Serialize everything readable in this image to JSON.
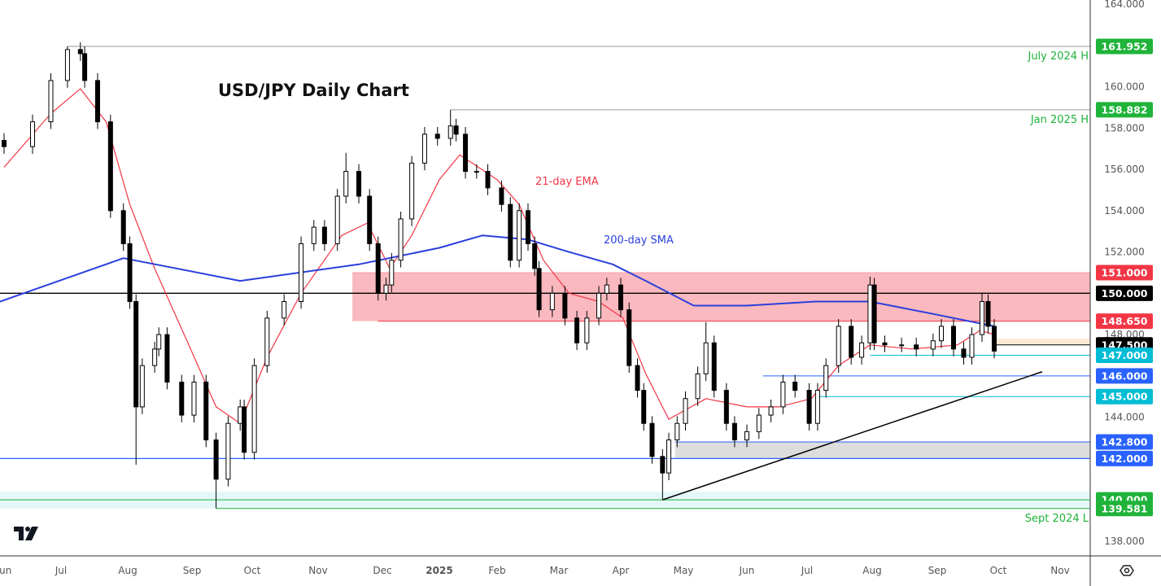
{
  "chart_data": {
    "type": "candlestick",
    "title": "USD/JPY Daily Chart",
    "y_ticks": [
      164,
      160,
      158,
      156,
      154,
      152,
      148,
      144,
      138
    ],
    "ylim": [
      138,
      164
    ],
    "x_ticks": [
      "Jun",
      "Jul",
      "Aug",
      "Sep",
      "Oct",
      "Nov",
      "Dec",
      "2025",
      "Feb",
      "Mar",
      "Apr",
      "May",
      "Jun",
      "Jul",
      "Aug",
      "Sep",
      "Oct",
      "Nov"
    ],
    "candles": [
      {
        "date": "2024-06-03",
        "close": 157.1
      },
      {
        "date": "2024-06-17",
        "close": 158.3
      },
      {
        "date": "2024-06-26",
        "close": 160.3
      },
      {
        "date": "2024-07-04",
        "close": 161.8,
        "high": 161.952
      },
      {
        "date": "2024-07-10",
        "close": 161.6
      },
      {
        "date": "2024-07-12",
        "close": 160.3
      },
      {
        "date": "2024-07-18",
        "close": 158.3
      },
      {
        "date": "2024-07-24",
        "close": 154.0
      },
      {
        "date": "2024-07-30",
        "close": 152.4
      },
      {
        "date": "2024-08-02",
        "close": 149.6
      },
      {
        "date": "2024-08-05",
        "close": 144.5,
        "low": 141.7
      },
      {
        "date": "2024-08-08",
        "close": 146.5
      },
      {
        "date": "2024-08-14",
        "close": 147.3
      },
      {
        "date": "2024-08-16",
        "close": 148.0
      },
      {
        "date": "2024-08-20",
        "close": 145.7
      },
      {
        "date": "2024-08-27",
        "close": 144.1
      },
      {
        "date": "2024-09-02",
        "close": 145.7
      },
      {
        "date": "2024-09-08",
        "close": 142.9
      },
      {
        "date": "2024-09-13",
        "close": 141.0,
        "low": 139.581
      },
      {
        "date": "2024-09-19",
        "close": 143.7
      },
      {
        "date": "2024-09-25",
        "close": 144.5
      },
      {
        "date": "2024-09-27",
        "close": 142.3
      },
      {
        "date": "2024-10-02",
        "close": 146.5
      },
      {
        "date": "2024-10-08",
        "close": 148.8
      },
      {
        "date": "2024-10-16",
        "close": 149.6
      },
      {
        "date": "2024-10-24",
        "close": 152.4
      },
      {
        "date": "2024-10-30",
        "close": 153.2
      },
      {
        "date": "2024-11-04",
        "close": 152.4
      },
      {
        "date": "2024-11-10",
        "close": 154.7
      },
      {
        "date": "2024-11-14",
        "close": 155.9,
        "high": 156.8
      },
      {
        "date": "2024-11-20",
        "close": 154.7
      },
      {
        "date": "2024-11-25",
        "close": 152.4
      },
      {
        "date": "2024-11-29",
        "close": 150.0
      },
      {
        "date": "2024-12-03",
        "close": 150.4
      },
      {
        "date": "2024-12-06",
        "close": 151.6
      },
      {
        "date": "2024-12-11",
        "close": 153.6
      },
      {
        "date": "2024-12-17",
        "close": 156.3
      },
      {
        "date": "2024-12-24",
        "close": 157.7
      },
      {
        "date": "2024-12-31",
        "close": 157.5
      },
      {
        "date": "2025-01-07",
        "close": 158.1,
        "high": 158.882
      },
      {
        "date": "2025-01-10",
        "close": 157.7
      },
      {
        "date": "2025-01-15",
        "close": 155.9
      },
      {
        "date": "2025-01-21",
        "close": 155.9
      },
      {
        "date": "2025-01-27",
        "close": 155.1
      },
      {
        "date": "2025-02-03",
        "close": 154.3
      },
      {
        "date": "2025-02-07",
        "close": 151.6
      },
      {
        "date": "2025-02-11",
        "close": 154.0
      },
      {
        "date": "2025-02-15",
        "close": 152.4
      },
      {
        "date": "2025-02-18",
        "close": 151.2
      },
      {
        "date": "2025-02-20",
        "close": 149.2
      },
      {
        "date": "2025-02-26",
        "close": 150.0
      },
      {
        "date": "2025-03-04",
        "close": 148.8
      },
      {
        "date": "2025-03-10",
        "close": 147.6
      },
      {
        "date": "2025-03-15",
        "close": 148.8
      },
      {
        "date": "2025-03-21",
        "close": 150.0
      },
      {
        "date": "2025-03-25",
        "close": 150.4
      },
      {
        "date": "2025-04-01",
        "close": 149.2
      },
      {
        "date": "2025-04-05",
        "close": 146.5
      },
      {
        "date": "2025-04-09",
        "close": 145.3
      },
      {
        "date": "2025-04-12",
        "close": 143.7
      },
      {
        "date": "2025-04-16",
        "close": 142.1
      },
      {
        "date": "2025-04-21",
        "close": 141.3,
        "low": 140.0
      },
      {
        "date": "2025-04-24",
        "close": 142.9
      },
      {
        "date": "2025-04-28",
        "close": 143.7
      },
      {
        "date": "2025-05-02",
        "close": 144.9
      },
      {
        "date": "2025-05-08",
        "close": 146.1
      },
      {
        "date": "2025-05-12",
        "close": 147.6,
        "high": 148.6
      },
      {
        "date": "2025-05-16",
        "close": 145.3
      },
      {
        "date": "2025-05-22",
        "close": 143.7
      },
      {
        "date": "2025-05-26",
        "close": 142.9
      },
      {
        "date": "2025-06-01",
        "close": 143.3
      },
      {
        "date": "2025-06-07",
        "close": 144.1
      },
      {
        "date": "2025-06-13",
        "close": 144.5
      },
      {
        "date": "2025-06-19",
        "close": 145.7
      },
      {
        "date": "2025-06-25",
        "close": 145.3
      },
      {
        "date": "2025-07-02",
        "close": 143.7
      },
      {
        "date": "2025-07-06",
        "close": 145.3
      },
      {
        "date": "2025-07-10",
        "close": 146.5
      },
      {
        "date": "2025-07-16",
        "close": 148.4
      },
      {
        "date": "2025-07-22",
        "close": 146.9
      },
      {
        "date": "2025-07-27",
        "close": 147.6
      },
      {
        "date": "2025-07-31",
        "close": 150.4,
        "high": 150.8
      },
      {
        "date": "2025-08-02",
        "close": 147.6
      },
      {
        "date": "2025-08-07",
        "close": 147.5
      },
      {
        "date": "2025-08-15",
        "close": 147.5
      },
      {
        "date": "2025-08-22",
        "close": 147.3
      },
      {
        "date": "2025-08-30",
        "close": 147.7
      },
      {
        "date": "2025-09-03",
        "close": 148.4
      },
      {
        "date": "2025-09-09",
        "close": 147.3
      },
      {
        "date": "2025-09-14",
        "close": 146.9
      },
      {
        "date": "2025-09-18",
        "close": 148.0
      },
      {
        "date": "2025-09-23",
        "close": 149.6,
        "high": 150.0
      },
      {
        "date": "2025-09-26",
        "close": 148.4
      },
      {
        "date": "2025-09-29",
        "close": 147.2
      }
    ],
    "series": [
      {
        "name": "21-day EMA",
        "color": "#f23645",
        "points": [
          [
            "2024-06-03",
            156.1
          ],
          [
            "2024-06-26",
            158.7
          ],
          [
            "2024-07-10",
            159.9
          ],
          [
            "2024-07-22",
            158.3
          ],
          [
            "2024-08-02",
            154.3
          ],
          [
            "2024-08-14",
            151.2
          ],
          [
            "2024-08-30",
            147.6
          ],
          [
            "2024-09-13",
            144.5
          ],
          [
            "2024-09-25",
            143.7
          ],
          [
            "2024-10-08",
            146.9
          ],
          [
            "2024-10-24",
            150.0
          ],
          [
            "2024-11-12",
            152.8
          ],
          [
            "2024-11-24",
            153.4
          ],
          [
            "2024-12-05",
            151.2
          ],
          [
            "2024-12-17",
            152.8
          ],
          [
            "2025-01-01",
            155.5
          ],
          [
            "2025-01-12",
            156.7
          ],
          [
            "2025-02-01",
            155.5
          ],
          [
            "2025-02-11",
            154.3
          ],
          [
            "2025-02-22",
            151.6
          ],
          [
            "2025-03-06",
            150.0
          ],
          [
            "2025-03-21",
            149.6
          ],
          [
            "2025-04-02",
            148.8
          ],
          [
            "2025-04-13",
            146.1
          ],
          [
            "2025-04-24",
            143.9
          ],
          [
            "2025-05-12",
            144.9
          ],
          [
            "2025-06-01",
            144.5
          ],
          [
            "2025-06-17",
            144.5
          ],
          [
            "2025-07-03",
            144.9
          ],
          [
            "2025-07-16",
            146.5
          ],
          [
            "2025-07-31",
            147.5
          ],
          [
            "2025-08-20",
            147.3
          ],
          [
            "2025-09-11",
            147.5
          ],
          [
            "2025-09-22",
            148.2
          ],
          [
            "2025-09-29",
            148.0
          ]
        ]
      },
      {
        "name": "200-day SMA",
        "color": "#2b3fdd",
        "points": [
          [
            "2024-06-01",
            149.6
          ],
          [
            "2024-07-30",
            151.7
          ],
          [
            "2024-09-25",
            150.6
          ],
          [
            "2024-11-20",
            151.4
          ],
          [
            "2025-01-01",
            152.2
          ],
          [
            "2025-01-24",
            152.8
          ],
          [
            "2025-02-15",
            152.6
          ],
          [
            "2025-03-06",
            152.0
          ],
          [
            "2025-03-28",
            151.4
          ],
          [
            "2025-04-13",
            150.6
          ],
          [
            "2025-05-06",
            149.4
          ],
          [
            "2025-06-01",
            149.4
          ],
          [
            "2025-07-05",
            149.6
          ],
          [
            "2025-07-31",
            149.6
          ],
          [
            "2025-08-30",
            149.0
          ],
          [
            "2025-09-29",
            148.4
          ]
        ]
      }
    ],
    "levels": [
      {
        "value": 161.952,
        "tag": "161.952",
        "note": "July 2024 H",
        "color": "#1fb33a",
        "from": "2024-07-04",
        "line": "#999999"
      },
      {
        "value": 158.882,
        "tag": "158.882",
        "note": "Jan 2025 H",
        "color": "#1fb33a",
        "from": "2025-01-07",
        "line": "#999999"
      },
      {
        "value": 151.0,
        "tag": "151.000",
        "color": "#f23645",
        "from": "2024-11-17",
        "line": "#f7a1a9"
      },
      {
        "value": 150.0,
        "tag": "150.000",
        "color": "#000000",
        "from": "2024-06-01",
        "line": "#000000"
      },
      {
        "value": 148.65,
        "tag": "148.650",
        "color": "#f23645",
        "from": "2024-11-29",
        "line": "#f23645"
      },
      {
        "value": 147.5,
        "tag": "147.500",
        "color": "#000000",
        "from": "2025-09-29",
        "line": "#000000"
      },
      {
        "value": 147.0,
        "tag": "147.000",
        "color": "#00bcd4",
        "from": "2025-07-31",
        "line": "#00bcd4",
        "dark_text": true
      },
      {
        "value": 146.0,
        "tag": "146.000",
        "color": "#2962ff",
        "from": "2025-06-09",
        "line": "#2962ff"
      },
      {
        "value": 145.0,
        "tag": "145.000",
        "color": "#00bcd4",
        "from": "2025-07-05",
        "line": "#00bcd4",
        "dark_text": true
      },
      {
        "value": 142.8,
        "tag": "142.800",
        "color": "#2962ff",
        "from": "2025-04-27",
        "line": "#2962ff"
      },
      {
        "value": 142.0,
        "tag": "142.000",
        "color": "#2962ff",
        "from": "2024-06-01",
        "line": "#2962ff"
      },
      {
        "value": 140.0,
        "tag": "140.000",
        "color": "#1fb33a",
        "from": "2024-06-01",
        "line": "#1fb33a"
      },
      {
        "value": 139.581,
        "tag": "139.581",
        "note": "Sept 2024 L",
        "color": "#1fb33a",
        "from": "2024-09-13",
        "line": "#1fb33a"
      }
    ],
    "zones": [
      {
        "from_date": "2024-11-17",
        "top": 151.0,
        "bottom": 148.65,
        "color": "#f23645"
      },
      {
        "from_date": "2025-09-29",
        "top": 147.8,
        "bottom": 147.5,
        "color": "#f5c77e"
      },
      {
        "from_date": "2025-04-27",
        "top": 142.8,
        "bottom": 142.0,
        "color": "#9e9e9e"
      },
      {
        "from_date": "2024-06-01",
        "top": 140.4,
        "bottom": 139.581,
        "color": "#b2ebf2"
      }
    ],
    "trendline": [
      [
        "2025-04-21",
        140.0
      ],
      [
        "2025-10-23",
        146.2
      ]
    ],
    "annotations": {
      "ema_label": "21-day EMA",
      "sma_label": "200-day SMA"
    }
  }
}
